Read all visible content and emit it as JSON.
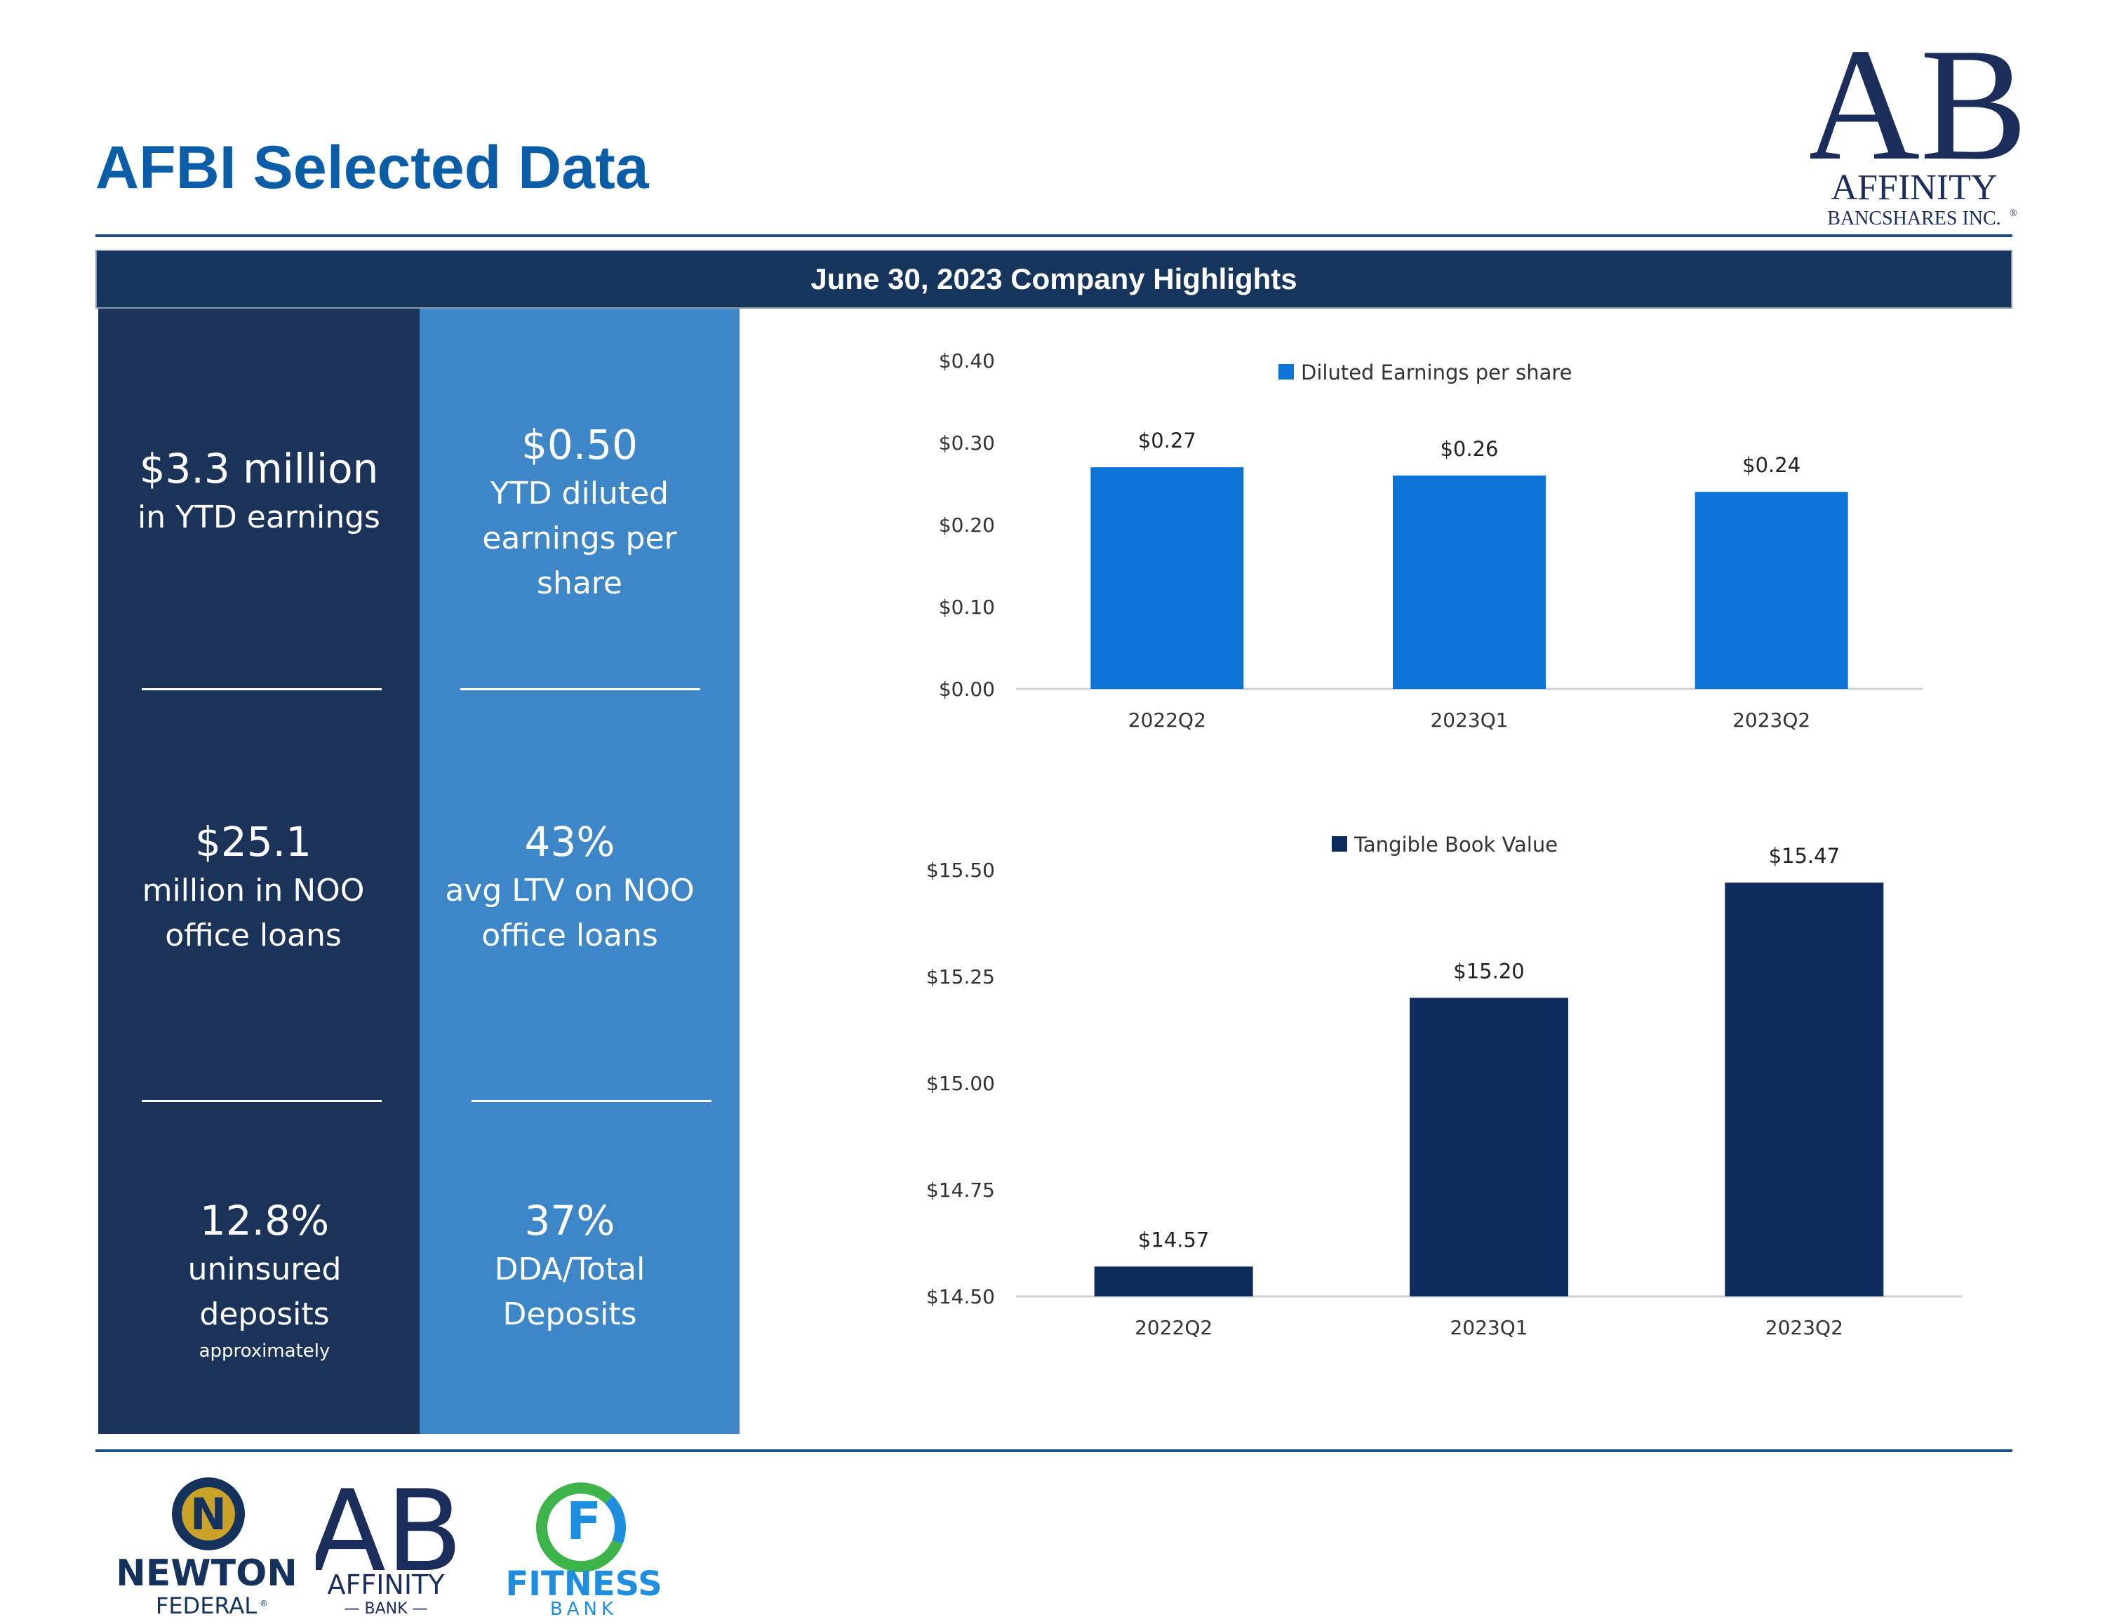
{
  "header": {
    "title": "AFBI Selected Data",
    "logo": {
      "mark": "AB",
      "name": "AFFINITY",
      "sub": "BANCSHARES INC.",
      "reg": "®"
    }
  },
  "banner": {
    "text": "June 30, 2023 Company Highlights"
  },
  "highlights": {
    "left": [
      {
        "big": "$3.3 million",
        "lines": [
          "in YTD earnings"
        ]
      },
      {
        "big": "$25.1",
        "lines": [
          "million in NOO",
          "office loans"
        ]
      },
      {
        "big": "12.8%",
        "lines": [
          "uninsured",
          "deposits"
        ],
        "note": "approximately"
      }
    ],
    "right": [
      {
        "big": "$0.50",
        "lines": [
          "YTD diluted",
          "earnings per",
          "share"
        ]
      },
      {
        "big": "43%",
        "lines": [
          "avg LTV on NOO",
          "office loans"
        ]
      },
      {
        "big": "37%",
        "lines": [
          "DDA/Total",
          "Deposits"
        ]
      }
    ]
  },
  "chart_data": [
    {
      "type": "bar",
      "categories": [
        "2022Q2",
        "2023Q1",
        "2023Q2"
      ],
      "series": [
        {
          "name": "Diluted Earnings per share",
          "values": [
            0.27,
            0.26,
            0.24
          ]
        }
      ],
      "data_labels": [
        "$0.27",
        "$0.26",
        "$0.24"
      ],
      "y_ticks": [
        "$0.00",
        "$0.10",
        "$0.20",
        "$0.30",
        "$0.40"
      ],
      "ylim": [
        0,
        0.4
      ],
      "color": "#0B74D6",
      "legend": "top"
    },
    {
      "type": "bar",
      "categories": [
        "2022Q2",
        "2023Q1",
        "2023Q2"
      ],
      "series": [
        {
          "name": "Tangible Book Value",
          "values": [
            14.57,
            15.2,
            15.47
          ]
        }
      ],
      "data_labels": [
        "$14.57",
        "$15.20",
        "$15.47"
      ],
      "y_ticks": [
        "$14.50",
        "$14.75",
        "$15.00",
        "$15.25",
        "$15.50"
      ],
      "ylim": [
        14.5,
        15.5
      ],
      "color": "#0D2B5C",
      "legend": "top"
    }
  ],
  "footer": {
    "newton": {
      "mark": "N",
      "name": "NEWTON",
      "sub": "FEDERAL",
      "reg": "®"
    },
    "affinity_bank": {
      "mark": "AB",
      "name": "AFFINITY",
      "sub": "— BANK —"
    },
    "fitness": {
      "mark": "F",
      "name": "FITNESS",
      "sub": "BANK"
    }
  }
}
